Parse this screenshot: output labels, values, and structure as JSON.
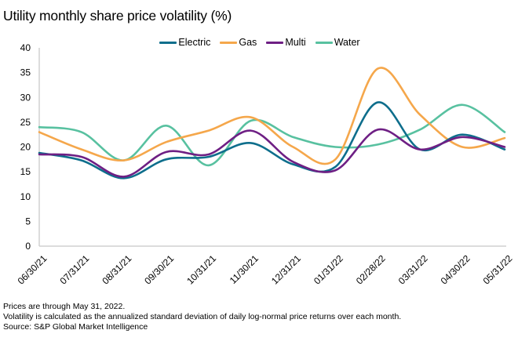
{
  "title": "Utility monthly share price volatility (%)",
  "notes": [
    "Prices are through May 31, 2022.",
    "Volatility is calculated as the annualized standard deviation of daily log-normal price returns over each month.",
    "Source: S&P Global Market Intelligence"
  ],
  "chart_data": {
    "type": "line",
    "title": "Utility monthly share price volatility (%)",
    "xlabel": "",
    "ylabel": "",
    "ylim": [
      0,
      40
    ],
    "yticks": [
      0,
      5,
      10,
      15,
      20,
      25,
      30,
      35,
      40
    ],
    "grid": false,
    "smooth": true,
    "legend_position": "top-center",
    "categories": [
      "06/30/21",
      "07/31/21",
      "08/31/21",
      "09/30/21",
      "10/31/21",
      "11/30/21",
      "12/31/21",
      "01/31/22",
      "02/28/22",
      "03/31/22",
      "04/30/22",
      "05/31/22"
    ],
    "series": [
      {
        "name": "Electric",
        "color": "#0e6e8c",
        "values": [
          18.8,
          17.3,
          13.7,
          17.5,
          18.0,
          20.8,
          16.5,
          16.0,
          29.0,
          19.5,
          22.5,
          19.5
        ]
      },
      {
        "name": "Gas",
        "color": "#f5a74b",
        "values": [
          23.0,
          19.5,
          17.3,
          21.0,
          23.3,
          26.0,
          20.0,
          17.5,
          35.8,
          26.5,
          20.0,
          21.8
        ]
      },
      {
        "name": "Multi",
        "color": "#6e1f84",
        "values": [
          18.5,
          18.0,
          14.0,
          19.0,
          18.5,
          23.3,
          17.0,
          15.3,
          23.5,
          19.5,
          22.0,
          20.0
        ]
      },
      {
        "name": "Water",
        "color": "#58c1a0",
        "values": [
          24.0,
          23.0,
          17.3,
          24.3,
          16.3,
          25.3,
          22.0,
          20.0,
          20.5,
          23.5,
          28.5,
          23.0
        ]
      }
    ]
  }
}
